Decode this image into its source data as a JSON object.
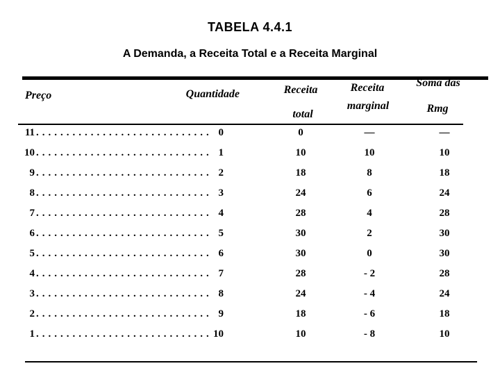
{
  "titles": {
    "table_number": "TABELA 4.4.1",
    "subtitle": "A Demanda, a Receita Total e a Receita Marginal"
  },
  "header": {
    "preco": "Preço",
    "quantidade": "Quantidade",
    "receita_total_line1": "Receita",
    "receita_total_line2": "total",
    "receita_marginal_line1": "Receita",
    "receita_marginal_line2": "marginal",
    "soma_line1": "Soma das",
    "soma_line2": "Rmg"
  },
  "table": {
    "leader": "............................................................",
    "rows": [
      {
        "price": "11",
        "qty": "0",
        "total": "0",
        "marginal": "—",
        "soma": "—"
      },
      {
        "price": "10",
        "qty": "1",
        "total": "10",
        "marginal": "10",
        "soma": "10"
      },
      {
        "price": "9",
        "qty": "2",
        "total": "18",
        "marginal": "8",
        "soma": "18"
      },
      {
        "price": "8",
        "qty": "3",
        "total": "24",
        "marginal": "6",
        "soma": "24"
      },
      {
        "price": "7",
        "qty": "4",
        "total": "28",
        "marginal": "4",
        "soma": "28"
      },
      {
        "price": "6",
        "qty": "5",
        "total": "30",
        "marginal": "2",
        "soma": "30"
      },
      {
        "price": "5",
        "qty": "6",
        "total": "30",
        "marginal": "0",
        "soma": "30"
      },
      {
        "price": "4",
        "qty": "7",
        "total": "28",
        "marginal": "- 2",
        "soma": "28"
      },
      {
        "price": "3",
        "qty": "8",
        "total": "24",
        "marginal": "- 4",
        "soma": "24"
      },
      {
        "price": "2",
        "qty": "9",
        "total": "18",
        "marginal": "- 6",
        "soma": "18"
      },
      {
        "price": "1",
        "qty": "10",
        "total": "10",
        "marginal": "- 8",
        "soma": "10"
      }
    ]
  },
  "colors": {
    "text": "#000000",
    "background": "#ffffff"
  }
}
